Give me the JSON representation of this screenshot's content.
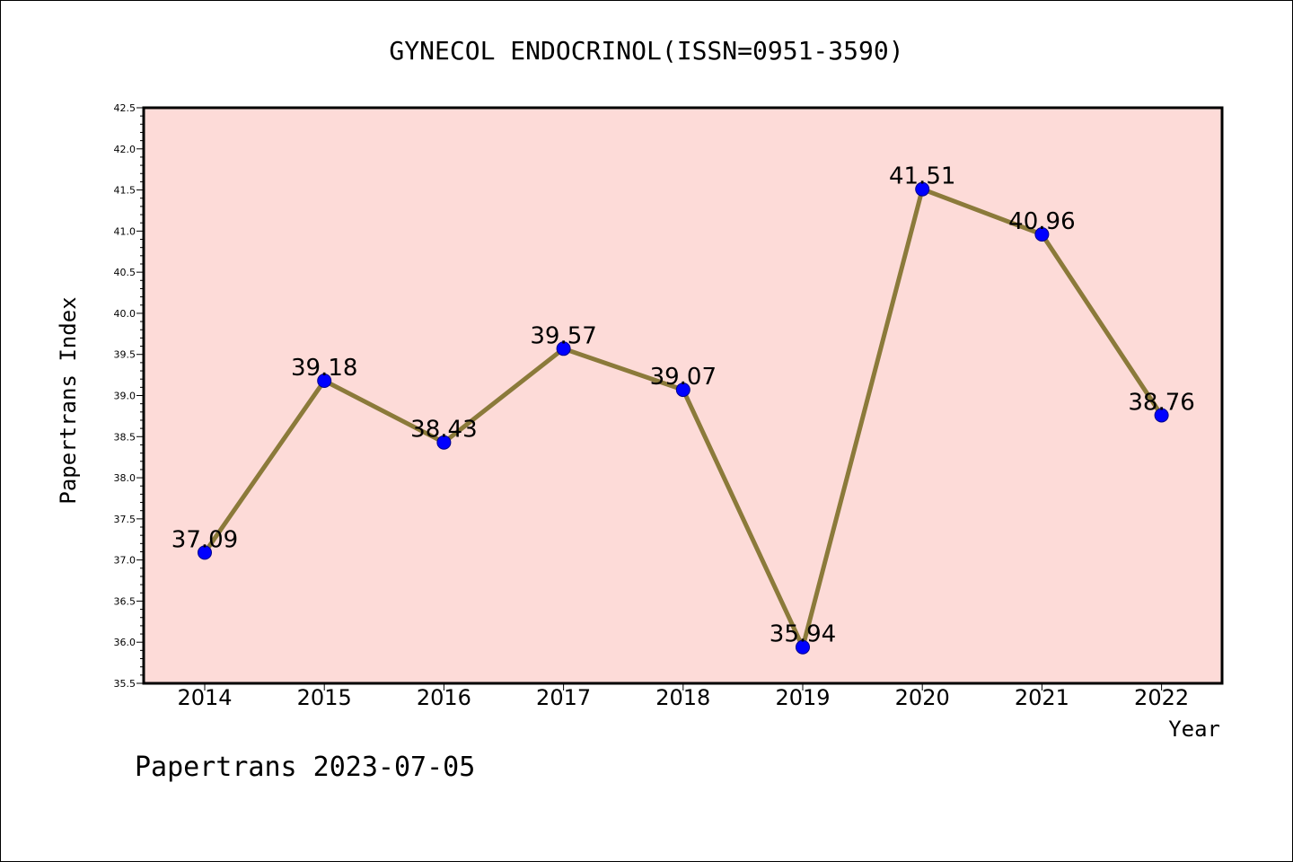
{
  "chart_data": {
    "type": "line",
    "title": "GYNECOL ENDOCRINOL(ISSN=0951-3590)",
    "xlabel": "Year",
    "ylabel": "Papertrans Index",
    "categories": [
      "2014",
      "2015",
      "2016",
      "2017",
      "2018",
      "2019",
      "2020",
      "2021",
      "2022"
    ],
    "series": [
      {
        "name": "Papertrans Index",
        "values": [
          37.09,
          39.18,
          38.43,
          39.57,
          39.07,
          35.94,
          41.51,
          40.96,
          38.76
        ],
        "labels": [
          "37.09",
          "39.18",
          "38.43",
          "39.57",
          "39.07",
          "35.94",
          "41.51",
          "40.96",
          "38.76"
        ]
      }
    ],
    "ylim": [
      35.5,
      42.5
    ],
    "yticks": [
      "35.5",
      "36.0",
      "36.5",
      "37.0",
      "37.5",
      "38.0",
      "38.5",
      "39.0",
      "39.5",
      "40.0",
      "40.5",
      "41.0",
      "41.5",
      "42.0",
      "42.5"
    ],
    "grid": false,
    "colors": {
      "plot_background": "#fddbd8",
      "line": "#8b7a3a",
      "marker_fill": "#0000ff",
      "marker_edge": "#00008b",
      "axis": "#000000"
    }
  },
  "footer": {
    "text": "Papertrans 2023-07-05"
  }
}
